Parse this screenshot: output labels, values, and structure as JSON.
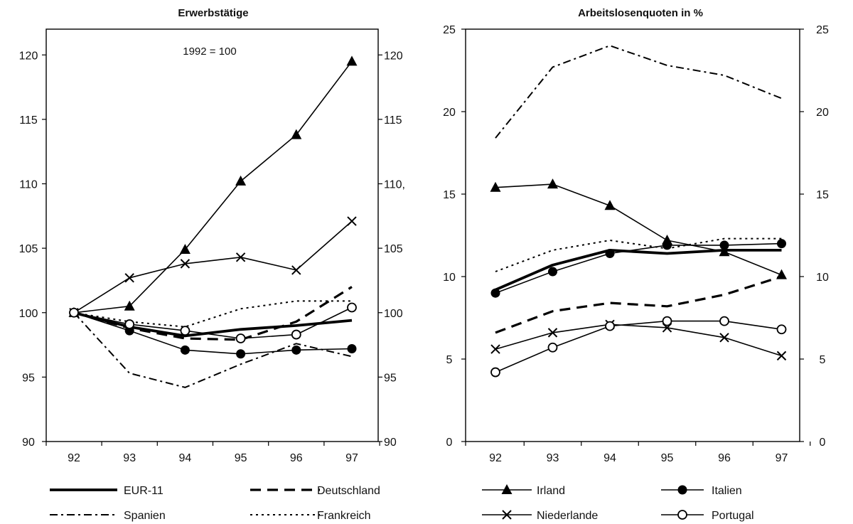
{
  "chart_data": [
    {
      "type": "line",
      "title": "Erwerbstätige",
      "annotation": "1992 = 100",
      "x": [
        "92",
        "93",
        "94",
        "95",
        "96",
        "97"
      ],
      "ylim": [
        90,
        122
      ],
      "yticks": [
        90,
        95,
        100,
        105,
        110,
        115,
        120
      ],
      "ytick_labels_right": [
        "90",
        "95",
        "100",
        "105",
        "110,",
        "115",
        "120"
      ],
      "series": [
        {
          "name": "EUR-11",
          "values": [
            100,
            98.9,
            98.2,
            98.7,
            99.0,
            99.4
          ],
          "style": "thick",
          "marker": "none"
        },
        {
          "name": "Deutschland",
          "values": [
            100,
            98.8,
            98.0,
            97.9,
            99.3,
            102.0
          ],
          "style": "dashed",
          "marker": "none"
        },
        {
          "name": "Spanien",
          "values": [
            100,
            95.3,
            94.2,
            96.0,
            97.6,
            96.6
          ],
          "style": "dashdot",
          "marker": "none"
        },
        {
          "name": "Frankreich",
          "values": [
            100,
            99.3,
            98.9,
            100.3,
            100.9,
            100.9
          ],
          "style": "dotted",
          "marker": "none"
        },
        {
          "name": "Irland",
          "values": [
            100,
            100.5,
            104.9,
            110.2,
            113.8,
            119.5
          ],
          "style": "solid",
          "marker": "triangle"
        },
        {
          "name": "Niederlande",
          "values": [
            100,
            102.7,
            103.8,
            104.3,
            103.3,
            107.1
          ],
          "style": "solid",
          "marker": "cross"
        },
        {
          "name": "Italien",
          "values": [
            100,
            98.6,
            97.1,
            96.8,
            97.1,
            97.2
          ],
          "style": "solid",
          "marker": "dot"
        },
        {
          "name": "Portugal",
          "values": [
            100,
            99.1,
            98.6,
            98.0,
            98.3,
            100.4
          ],
          "style": "solid",
          "marker": "circle"
        }
      ]
    },
    {
      "type": "line",
      "title": "Arbeitslosenquoten in %",
      "x": [
        "92",
        "93",
        "94",
        "95",
        "96",
        "97"
      ],
      "ylim": [
        0,
        25
      ],
      "yticks": [
        0,
        5,
        10,
        15,
        20,
        25
      ],
      "series": [
        {
          "name": "EUR-11",
          "values": [
            9.2,
            10.7,
            11.6,
            11.4,
            11.6,
            11.6
          ],
          "style": "thick",
          "marker": "none"
        },
        {
          "name": "Deutschland",
          "values": [
            6.6,
            7.9,
            8.4,
            8.2,
            8.9,
            10.0
          ],
          "style": "dashed",
          "marker": "none"
        },
        {
          "name": "Spanien",
          "values": [
            18.4,
            22.7,
            24.0,
            22.8,
            22.2,
            20.8
          ],
          "style": "dashdot",
          "marker": "none"
        },
        {
          "name": "Frankreich",
          "values": [
            10.3,
            11.6,
            12.2,
            11.7,
            12.3,
            12.3
          ],
          "style": "dotted",
          "marker": "none"
        },
        {
          "name": "Irland",
          "values": [
            15.4,
            15.6,
            14.3,
            12.2,
            11.5,
            10.1
          ],
          "style": "solid",
          "marker": "triangle"
        },
        {
          "name": "Niederlande",
          "values": [
            5.6,
            6.6,
            7.1,
            6.9,
            6.3,
            5.2
          ],
          "style": "solid",
          "marker": "cross"
        },
        {
          "name": "Italien",
          "values": [
            9.0,
            10.3,
            11.4,
            11.9,
            11.9,
            12.0
          ],
          "style": "solid",
          "marker": "dot"
        },
        {
          "name": "Portugal",
          "values": [
            4.2,
            5.7,
            7.0,
            7.3,
            7.3,
            6.8
          ],
          "style": "solid",
          "marker": "circle"
        }
      ]
    }
  ],
  "legend": {
    "left": [
      "EUR-11",
      "Deutschland",
      "Spanien",
      "Frankreich"
    ],
    "right": [
      "Irland",
      "Italien",
      "Niederlande",
      "Portugal"
    ]
  }
}
